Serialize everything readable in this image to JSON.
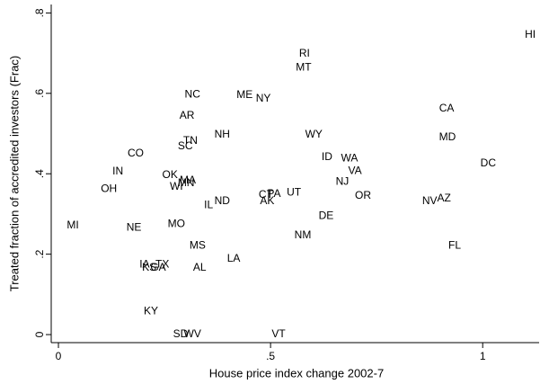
{
  "chart_data": {
    "type": "scatter",
    "xlabel": "House price index change 2002-7",
    "ylabel": "Treated fraction of accredited investors (Frac)",
    "categories": [
      "HI",
      "RI",
      "MT",
      "NC",
      "ME",
      "NY",
      "AR",
      "CA",
      "NH",
      "WY",
      "MD",
      "TN",
      "SC",
      "CO",
      "ID",
      "WA",
      "DC",
      "IN",
      "VA",
      "OK",
      "NJ",
      "MA",
      "WI",
      "MN",
      "OH",
      "OR",
      "UT",
      "PA",
      "CT",
      "ND",
      "AK",
      "IL",
      "NV",
      "AZ",
      "DE",
      "MI",
      "NE",
      "MO",
      "NM",
      "MS",
      "FL",
      "LA",
      "IA",
      "TX",
      "KS",
      "GA",
      "AL",
      "KY",
      "SD",
      "WV",
      "VT"
    ],
    "x": [
      1.112,
      0.58,
      0.578,
      0.316,
      0.439,
      0.483,
      0.303,
      0.915,
      0.386,
      0.602,
      0.917,
      0.311,
      0.299,
      0.182,
      0.633,
      0.686,
      1.013,
      0.14,
      0.699,
      0.263,
      0.669,
      0.305,
      0.278,
      0.301,
      0.119,
      0.718,
      0.555,
      0.508,
      0.489,
      0.386,
      0.492,
      0.354,
      0.875,
      0.909,
      0.631,
      0.034,
      0.178,
      0.278,
      0.576,
      0.328,
      0.934,
      0.413,
      0.203,
      0.245,
      0.214,
      0.235,
      0.333,
      0.218,
      0.288,
      0.316,
      0.519
    ],
    "values": [
      0.745,
      0.698,
      0.664,
      0.597,
      0.595,
      0.586,
      0.544,
      0.562,
      0.497,
      0.497,
      0.49,
      0.481,
      0.468,
      0.45,
      0.441,
      0.438,
      0.425,
      0.405,
      0.407,
      0.396,
      0.38,
      0.383,
      0.367,
      0.376,
      0.362,
      0.345,
      0.353,
      0.349,
      0.347,
      0.331,
      0.331,
      0.322,
      0.331,
      0.338,
      0.295,
      0.271,
      0.266,
      0.275,
      0.246,
      0.221,
      0.221,
      0.188,
      0.174,
      0.174,
      0.166,
      0.166,
      0.166,
      0.058,
      0,
      0,
      0
    ],
    "color": "#000000",
    "xlim": [
      -0.017,
      1.133
    ],
    "ylim": [
      -0.02,
      0.821
    ],
    "xticks": [
      0,
      {
        "value": 0.5,
        "label": ".5"
      },
      1
    ],
    "yticks": [
      0,
      {
        "value": 0.2,
        "label": ".2"
      },
      {
        "value": 0.4,
        "label": ".4"
      },
      {
        "value": 0.6,
        "label": ".6"
      },
      {
        "value": 0.8,
        "label": ".8"
      }
    ]
  }
}
